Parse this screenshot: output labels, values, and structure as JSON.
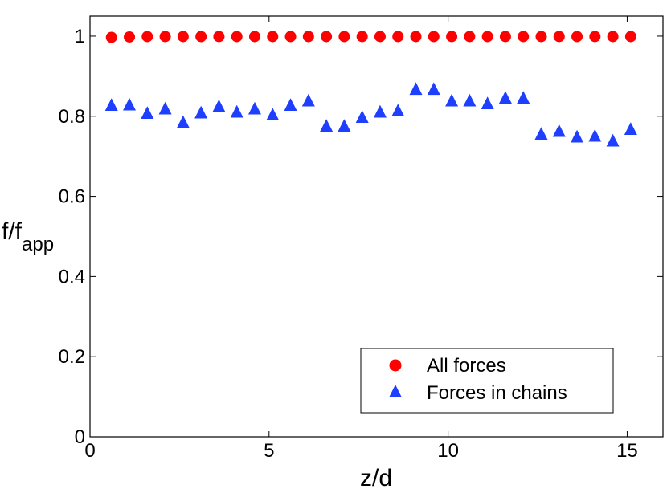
{
  "chart_data": {
    "type": "scatter",
    "xlabel": "z/d",
    "ylabel": {
      "main": "f/f",
      "sub": "app"
    },
    "xlim": [
      0,
      16
    ],
    "ylim": [
      0,
      1.05
    ],
    "xticks": [
      "0",
      "5",
      "10",
      "15"
    ],
    "yticks": [
      "0",
      "0.2",
      "0.4",
      "0.6",
      "0.8",
      "1"
    ],
    "grid": false,
    "legend_position": "bottom-right",
    "series": [
      {
        "name": "All forces",
        "marker": "circle",
        "color": "#ff0000",
        "x": [
          0.6,
          1.1,
          1.6,
          2.1,
          2.6,
          3.1,
          3.6,
          4.1,
          4.6,
          5.1,
          5.6,
          6.1,
          6.6,
          7.1,
          7.6,
          8.1,
          8.6,
          9.1,
          9.6,
          10.1,
          10.6,
          11.1,
          11.6,
          12.1,
          12.6,
          13.1,
          13.6,
          14.1,
          14.6,
          15.1
        ],
        "y": [
          0.997,
          0.998,
          0.999,
          0.999,
          0.999,
          0.999,
          0.999,
          0.999,
          0.999,
          0.999,
          0.999,
          0.999,
          0.999,
          0.999,
          0.999,
          0.999,
          0.999,
          0.999,
          0.999,
          0.999,
          0.999,
          0.999,
          0.999,
          0.999,
          0.999,
          0.999,
          0.999,
          0.999,
          0.999,
          0.999
        ]
      },
      {
        "name": "Forces in chains",
        "marker": "triangle",
        "color": "#1f3fff",
        "x": [
          0.6,
          1.1,
          1.6,
          2.1,
          2.6,
          3.1,
          3.6,
          4.1,
          4.6,
          5.1,
          5.6,
          6.1,
          6.6,
          7.1,
          7.6,
          8.1,
          8.6,
          9.1,
          9.6,
          10.1,
          10.6,
          11.1,
          11.6,
          12.1,
          12.6,
          13.1,
          13.6,
          14.1,
          14.6,
          15.1
        ],
        "y": [
          0.827,
          0.828,
          0.807,
          0.818,
          0.784,
          0.808,
          0.824,
          0.81,
          0.818,
          0.803,
          0.827,
          0.838,
          0.775,
          0.775,
          0.797,
          0.81,
          0.813,
          0.867,
          0.867,
          0.838,
          0.838,
          0.831,
          0.845,
          0.845,
          0.755,
          0.762,
          0.748,
          0.75,
          0.738,
          0.767
        ]
      }
    ]
  }
}
